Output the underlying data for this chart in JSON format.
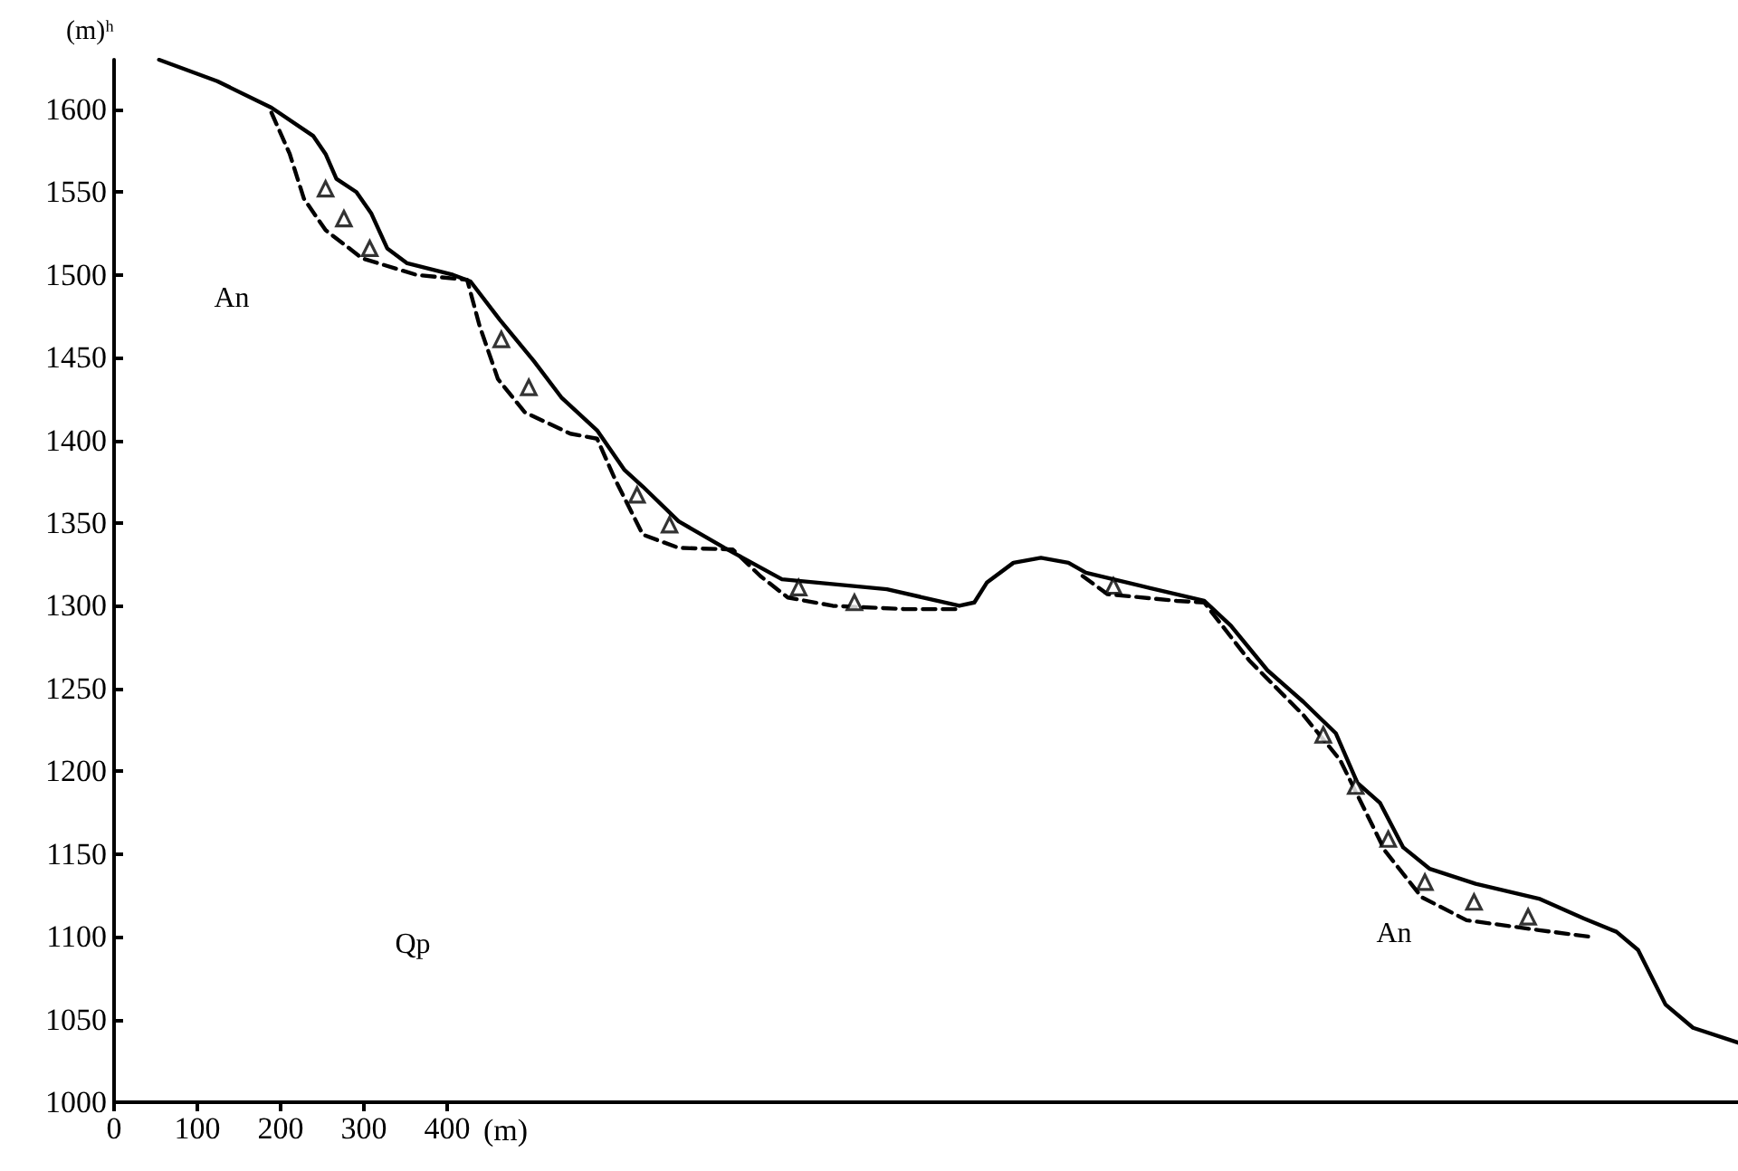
{
  "chart_data": {
    "type": "line",
    "xlabel": "(m)",
    "ylabel": "(m)ʰ",
    "xlim": [
      0,
      1950
    ],
    "xticks": [
      0,
      100,
      200,
      300,
      400
    ],
    "ylim": [
      1000,
      1630
    ],
    "yticks": [
      1000,
      1050,
      1100,
      1150,
      1200,
      1250,
      1300,
      1350,
      1400,
      1450,
      1500,
      1550,
      1600
    ],
    "grid": false,
    "series": [
      {
        "color": "#000000",
        "line_style": "solid",
        "marker": "none",
        "x": [
          54,
          124,
          189,
          239,
          254,
          267,
          291,
          309,
          328,
          352,
          407,
          428,
          463,
          504,
          537,
          580,
          613,
          635,
          678,
          733,
          802,
          928,
          1015,
          1033,
          1048,
          1080,
          1113,
          1146,
          1167,
          1233,
          1309,
          1341,
          1385,
          1428,
          1467,
          1493,
          1520,
          1548,
          1580,
          1635,
          1711,
          1765,
          1804,
          1830,
          1863,
          1896,
          1950
        ],
        "values": [
          1630,
          1617,
          1601,
          1584,
          1573,
          1558,
          1550,
          1537,
          1516,
          1507,
          1500,
          1496,
          1473,
          1448,
          1426,
          1406,
          1382,
          1372,
          1351,
          1335,
          1316,
          1310,
          1300,
          1302,
          1314,
          1326,
          1329,
          1326,
          1320,
          1312,
          1303,
          1288,
          1261,
          1242,
          1223,
          1193,
          1181,
          1154,
          1141,
          1132,
          1123,
          1111,
          1103,
          1092,
          1059,
          1045,
          1036
        ]
      },
      {
        "color": "#000000",
        "line_style": "dashed",
        "marker": "none",
        "x": [
          189,
          211,
          228,
          254,
          298,
          363,
          424,
          439,
          461,
          493,
          548,
          580,
          602,
          635,
          678,
          743,
          776,
          809,
          863,
          950,
          1011,
          1087,
          1163,
          1193,
          1276,
          1309,
          1363,
          1428,
          1472,
          1526,
          1570,
          1624,
          1711,
          1772
        ],
        "values": [
          1598,
          1573,
          1546,
          1527,
          1510,
          1500,
          1497,
          1469,
          1437,
          1417,
          1404,
          1401,
          1376,
          1343,
          1335,
          1334,
          1318,
          1305,
          1300,
          1298,
          1298,
          null,
          1318,
          1307,
          1303,
          1302,
          1267,
          1234,
          1207,
          1152,
          1124,
          1110,
          1104,
          1100
        ]
      },
      {
        "type": "scatter",
        "color": "#000000",
        "marker": "triangle",
        "x": [
          254,
          276,
          307,
          465,
          498,
          628,
          667,
          822,
          889,
          1200,
          1452,
          1491,
          1530,
          1574,
          1633,
          1698
        ],
        "values": [
          1552,
          1534,
          1516,
          1461,
          1432,
          1367,
          1349,
          1311,
          1302,
          1312,
          1222,
          1191,
          1159,
          1133,
          1121,
          1112
        ]
      }
    ],
    "annotations": [
      "An",
      "Qp",
      "An"
    ]
  }
}
